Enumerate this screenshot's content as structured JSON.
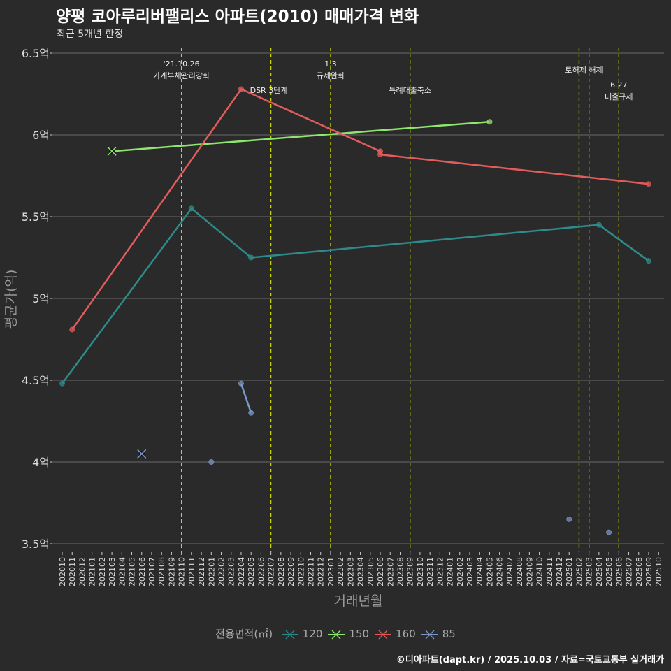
{
  "title": "양평 코아루리버팰리스 아파트(2010) 매매가격 변화",
  "subtitle": "최근 5개년 한정",
  "caption": "©디아파트(dapt.kr) / 2025.10.03 / 자료=국토교통부 실거래가",
  "chart_data": {
    "type": "line",
    "xlabel": "거래년월",
    "ylabel": "평균가(억)",
    "ylim": [
      3.5,
      6.5
    ],
    "yticks": [
      3.5,
      4,
      4.5,
      5,
      5.5,
      6,
      6.5
    ],
    "ytick_labels": [
      "3.5억",
      "4억",
      "4.5억",
      "5억",
      "5.5억",
      "6억",
      "6.5억"
    ],
    "x_categories": [
      "202010",
      "202011",
      "202012",
      "202101",
      "202102",
      "202103",
      "202104",
      "202105",
      "202106",
      "202107",
      "202108",
      "202109",
      "202110",
      "202111",
      "202112",
      "202201",
      "202202",
      "202203",
      "202204",
      "202205",
      "202206",
      "202207",
      "202208",
      "202209",
      "202210",
      "202211",
      "202212",
      "202301",
      "202302",
      "202303",
      "202304",
      "202305",
      "202306",
      "202307",
      "202308",
      "202309",
      "202310",
      "202311",
      "202312",
      "202401",
      "202402",
      "202403",
      "202404",
      "202405",
      "202406",
      "202407",
      "202408",
      "202409",
      "202410",
      "202411",
      "202412",
      "202501",
      "202502",
      "202503",
      "202504",
      "202505",
      "202506",
      "202507",
      "202508",
      "202509",
      "202510"
    ],
    "legend_title": "전용면적(㎡)",
    "legend_position": "bottom",
    "grid": "horizontal",
    "series": [
      {
        "name": "120",
        "color": "#2e8b8b",
        "points": [
          {
            "x": "202010",
            "y": 4.48
          },
          {
            "x": "202111",
            "y": 5.55
          },
          {
            "x": "202205",
            "y": 5.25
          },
          {
            "x": "202504",
            "y": 5.45
          },
          {
            "x": "202509",
            "y": 5.23
          }
        ]
      },
      {
        "name": "150",
        "color": "#8ee66e",
        "points": [
          {
            "x": "202103",
            "y": 5.9,
            "cross": true
          },
          {
            "x": "202405",
            "y": 6.08
          }
        ]
      },
      {
        "name": "160",
        "color": "#e25c5c",
        "points": [
          {
            "x": "202011",
            "y": 4.81
          },
          {
            "x": "202204",
            "y": 6.28
          },
          {
            "x": "202306",
            "y": 5.9
          },
          {
            "x": "202306",
            "y": 5.88
          },
          {
            "x": "202509",
            "y": 5.7
          }
        ]
      },
      {
        "name": "85",
        "color": "#7b97c8",
        "points": [
          {
            "x": "202106",
            "y": 4.05,
            "cross": true
          },
          {
            "x": "202201",
            "y": 4.0,
            "alone": true
          },
          {
            "x": "202204",
            "y": 4.48
          },
          {
            "x": "202205",
            "y": 4.3
          },
          {
            "x": "202501",
            "y": 3.65,
            "alone": true
          },
          {
            "x": "202505",
            "y": 3.57,
            "alone": true
          }
        ]
      }
    ],
    "events": [
      {
        "x": "202110",
        "lines": [
          "'21.10.26",
          "가계부채관리강화"
        ],
        "row": 0
      },
      {
        "x": "202207",
        "lines": [
          "DSR 3단계"
        ],
        "row": 2,
        "align": "left"
      },
      {
        "x": "202301",
        "lines": [
          "1.3",
          "규제완화"
        ],
        "row": 0
      },
      {
        "x": "202309",
        "lines": [
          "특례대출축소"
        ],
        "row": 2
      },
      {
        "x": "202502",
        "lines": [
          "토허제 해제"
        ],
        "row": 1,
        "offset": 0.5
      },
      {
        "x": "202503",
        "lines": [],
        "row": 1
      },
      {
        "x": "202506",
        "lines": [
          "6.27",
          "대출규제"
        ],
        "row": 3
      }
    ]
  }
}
